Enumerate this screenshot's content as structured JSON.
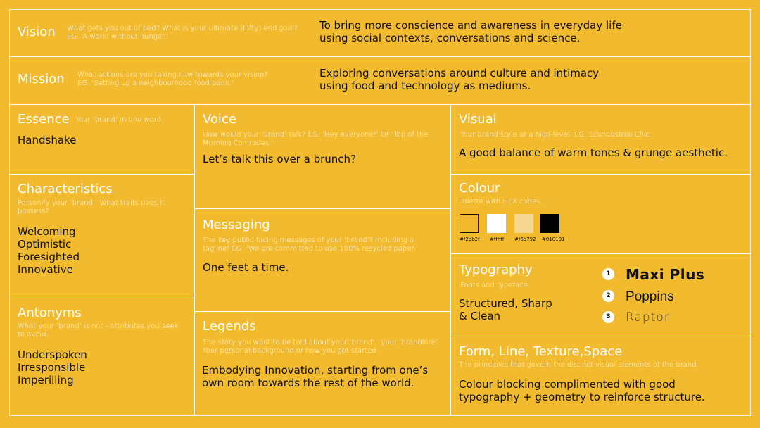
{
  "vision": {
    "title": "Vision",
    "prompt_line1": "What gets you out of bed? What is your ultimate (lofty) end goal?",
    "prompt_line2": "EG. ‘A world without hunger.’",
    "answer_line1": "To bring more conscience and awareness in everyday life",
    "answer_line2": "using social contexts, conversations and science."
  },
  "mission": {
    "title": "Mission",
    "prompt_line1": "What actions are you taking now towards your vision?",
    "prompt_line2": "EG. ‘Setting up a neighbourhood food bank.’",
    "answer_line1": "Exploring conversations around culture and intimacy",
    "answer_line2": "using food and technology as mediums."
  },
  "essence": {
    "title": "Essence",
    "prompt": "Your ‘brand’ in one word.",
    "answer": "Handshake"
  },
  "characteristics": {
    "title": "Characteristics",
    "prompt_line1": "Personify your ‘brand’. What traits does it",
    "prompt_line2": "possess?",
    "items": [
      "Welcoming",
      "Optimistic",
      "Foresighted",
      "Innovative"
    ]
  },
  "antonyms": {
    "title": "Antonyms",
    "prompt_line1": "What your ‘brand’ is not - attributes you seek",
    "prompt_line2": "to avoid.",
    "items": [
      "Underspoken",
      "Irresponsible",
      "Imperilling"
    ]
  },
  "voice": {
    "title": "Voice",
    "prompt_line1": "How would your ‘brand’ talk? EG: ‘Hey everyone!’ Or ‘Top of the",
    "prompt_line2": "Morning Comrades.’",
    "answer": "Let’s talk this over a brunch?"
  },
  "messaging": {
    "title": "Messaging",
    "prompt_line1": "The key public-facing messages of your ‘brand’? Including a",
    "prompt_line2": "tagline! EG. ‘We are committed to use 100% recycled paper.",
    "answer": "One feet a time."
  },
  "legends": {
    "title": "Legends",
    "prompt_line1": "The story you want to be told about your ‘brand’...your ‘brandlore’",
    "prompt_line2": "Your personal background or how you got started.",
    "answer_line1": "Embodying Innovation, starting from one’s",
    "answer_line2": "own room towards the rest of the world."
  },
  "visual": {
    "title": "Visual",
    "prompt": "Your brand style at a high-level. EG: Scandustrial Chic",
    "answer": "A good balance of warm tones & grunge aesthetic."
  },
  "colour": {
    "title": "Colour",
    "prompt": "Palette with HEX codes.",
    "swatches": [
      {
        "hex": "#f2bb2f",
        "label": "#f2bb2f"
      },
      {
        "hex": "#ffffff",
        "label": "#ffffff"
      },
      {
        "hex": "#f6d792",
        "label": "#f6d792"
      },
      {
        "hex": "#010101",
        "label": "#010101"
      }
    ]
  },
  "typography": {
    "title": "Typography",
    "prompt": "Fonts and typeface.",
    "answer_line1": "Structured, Sharp",
    "answer_line2": "& Clean",
    "fonts": [
      {
        "num": "1",
        "name": "Maxi Plus"
      },
      {
        "num": "2",
        "name": "Poppins"
      },
      {
        "num": "3",
        "name": "Raptor"
      }
    ]
  },
  "form": {
    "title": "Form, Line, Texture,Space",
    "prompt": "The principles that govern the distinct visual elements of the brand.",
    "answer_line1": "Colour blocking complimented with good",
    "answer_line2": "typography + geometry to reinforce structure."
  }
}
